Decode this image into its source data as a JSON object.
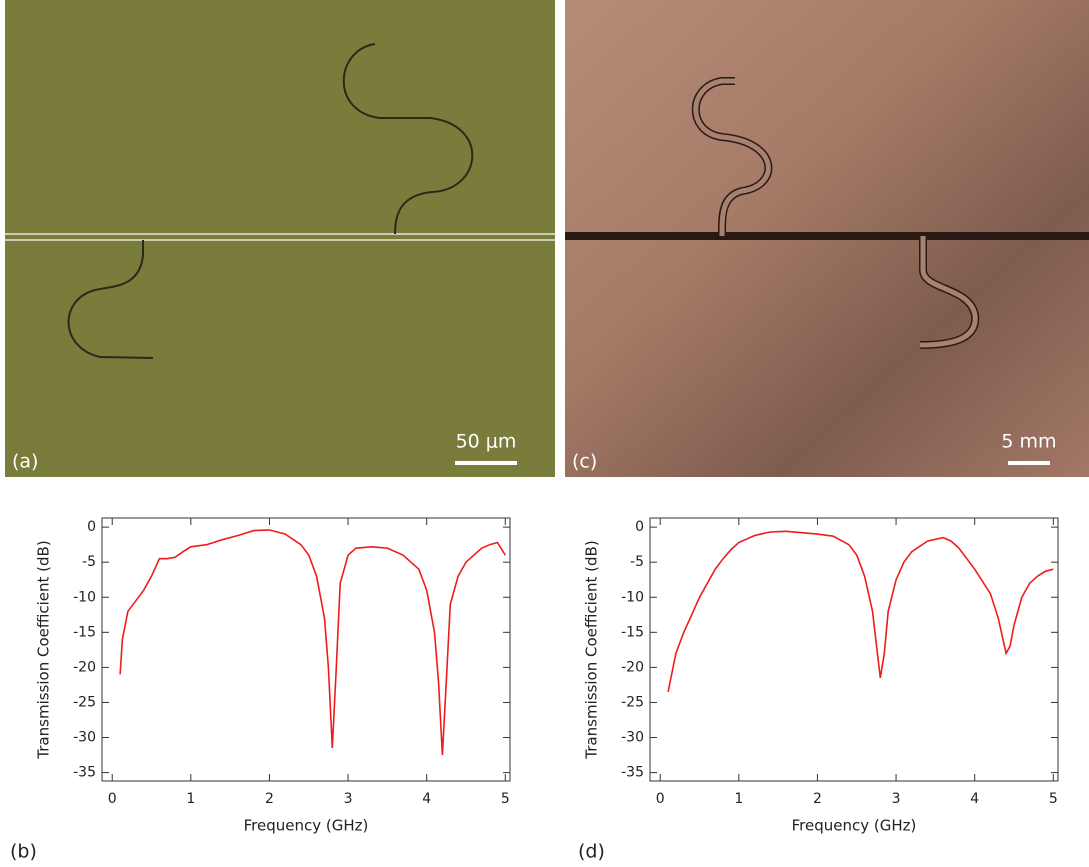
{
  "images": [
    {
      "label": "(a)",
      "scale_bar": "50 μm"
    },
    {
      "label": "(c)",
      "scale_bar": "5 mm"
    }
  ],
  "chart_data": [
    {
      "type": "line",
      "panel_label": "(b)",
      "x_label": "Frequency (GHz)",
      "y_label": "Transmission Coefficient (dB)",
      "xlim": [
        -0.13,
        5.06
      ],
      "ylim": [
        -36.2,
        1.3
      ],
      "xticks": [
        0,
        1,
        2,
        3,
        4,
        5
      ],
      "yticks": [
        0,
        -5,
        -10,
        -15,
        -20,
        -25,
        -30,
        -35
      ],
      "x": [
        0.1,
        0.13,
        0.2,
        0.3,
        0.4,
        0.5,
        0.6,
        0.7,
        0.8,
        0.9,
        1.0,
        1.2,
        1.4,
        1.6,
        1.8,
        2.0,
        2.2,
        2.4,
        2.5,
        2.6,
        2.7,
        2.75,
        2.8,
        2.85,
        2.9,
        3.0,
        3.1,
        3.3,
        3.5,
        3.7,
        3.9,
        4.0,
        4.1,
        4.15,
        4.2,
        4.25,
        4.3,
        4.4,
        4.5,
        4.6,
        4.7,
        4.8,
        4.9,
        5.0
      ],
      "series": [
        {
          "color": "#ee1c1c",
          "values": [
            -21,
            -16,
            -12,
            -10.5,
            -9,
            -7,
            -4.5,
            -4.5,
            -4.3,
            -3.5,
            -2.8,
            -2.5,
            -1.8,
            -1.2,
            -0.5,
            -0.4,
            -1,
            -2.5,
            -4,
            -7,
            -13,
            -20,
            -31.5,
            -20,
            -8,
            -4,
            -3,
            -2.8,
            -3,
            -4,
            -6,
            -9,
            -15,
            -22,
            -32.5,
            -22,
            -11,
            -7,
            -5,
            -4,
            -3,
            -2.5,
            -2.2,
            -4
          ]
        }
      ]
    },
    {
      "type": "line",
      "panel_label": "(d)",
      "x_label": "Frequency (GHz)",
      "y_label": "Transmission Coefficient (dB)",
      "xlim": [
        -0.13,
        5.06
      ],
      "ylim": [
        -36.2,
        1.3
      ],
      "xticks": [
        0,
        1,
        2,
        3,
        4,
        5
      ],
      "yticks": [
        0,
        -5,
        -10,
        -15,
        -20,
        -25,
        -30,
        -35
      ],
      "x": [
        0.1,
        0.2,
        0.3,
        0.4,
        0.5,
        0.6,
        0.7,
        0.8,
        0.9,
        1.0,
        1.2,
        1.4,
        1.6,
        1.8,
        2.0,
        2.2,
        2.4,
        2.5,
        2.6,
        2.7,
        2.8,
        2.85,
        2.9,
        3.0,
        3.1,
        3.2,
        3.4,
        3.6,
        3.7,
        3.8,
        3.9,
        4.0,
        4.2,
        4.3,
        4.4,
        4.45,
        4.5,
        4.6,
        4.7,
        4.8,
        4.9,
        5.0
      ],
      "series": [
        {
          "color": "#ee1c1c",
          "values": [
            -23.5,
            -18,
            -15,
            -12.5,
            -10,
            -8,
            -6,
            -4.5,
            -3.2,
            -2.2,
            -1.2,
            -0.7,
            -0.6,
            -0.8,
            -1.0,
            -1.3,
            -2.5,
            -4,
            -7,
            -12,
            -21.5,
            -18,
            -12,
            -7.5,
            -5,
            -3.5,
            -2,
            -1.5,
            -2,
            -3,
            -4.5,
            -6,
            -9.5,
            -13,
            -18,
            -17,
            -14,
            -10,
            -8,
            -7,
            -6.3,
            -6
          ]
        }
      ]
    }
  ]
}
